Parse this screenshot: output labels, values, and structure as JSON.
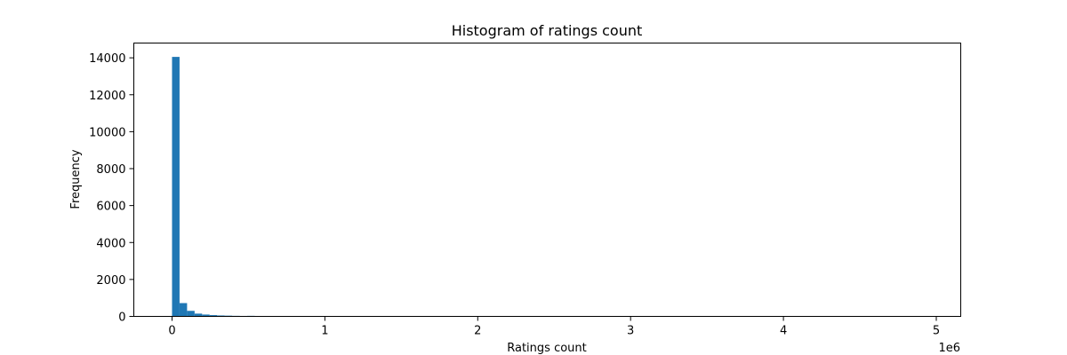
{
  "chart_data": {
    "type": "bar",
    "title": "Histogram of ratings count",
    "xlabel": "Ratings count",
    "ylabel": "Frequency",
    "x_offset_text": "1e6",
    "xlim": [
      -250000,
      5160000
    ],
    "ylim": [
      0,
      14800
    ],
    "xticks": [
      0,
      1000000,
      2000000,
      3000000,
      4000000,
      5000000
    ],
    "xtick_labels": [
      "0",
      "1",
      "2",
      "3",
      "4",
      "5"
    ],
    "yticks": [
      0,
      2000,
      4000,
      6000,
      8000,
      10000,
      12000,
      14000
    ],
    "ytick_labels": [
      "0",
      "2000",
      "4000",
      "6000",
      "8000",
      "10000",
      "12000",
      "14000"
    ],
    "bin_width": 49200,
    "bin_starts": [
      0,
      49200,
      98400,
      147600,
      196800,
      246000,
      295200,
      344400,
      393600,
      442800,
      492000,
      541200,
      590400,
      639600
    ],
    "values": [
      14050,
      720,
      300,
      150,
      100,
      70,
      50,
      40,
      30,
      25,
      30,
      20,
      10,
      5
    ],
    "color": "#1f77b4",
    "grid": false
  }
}
